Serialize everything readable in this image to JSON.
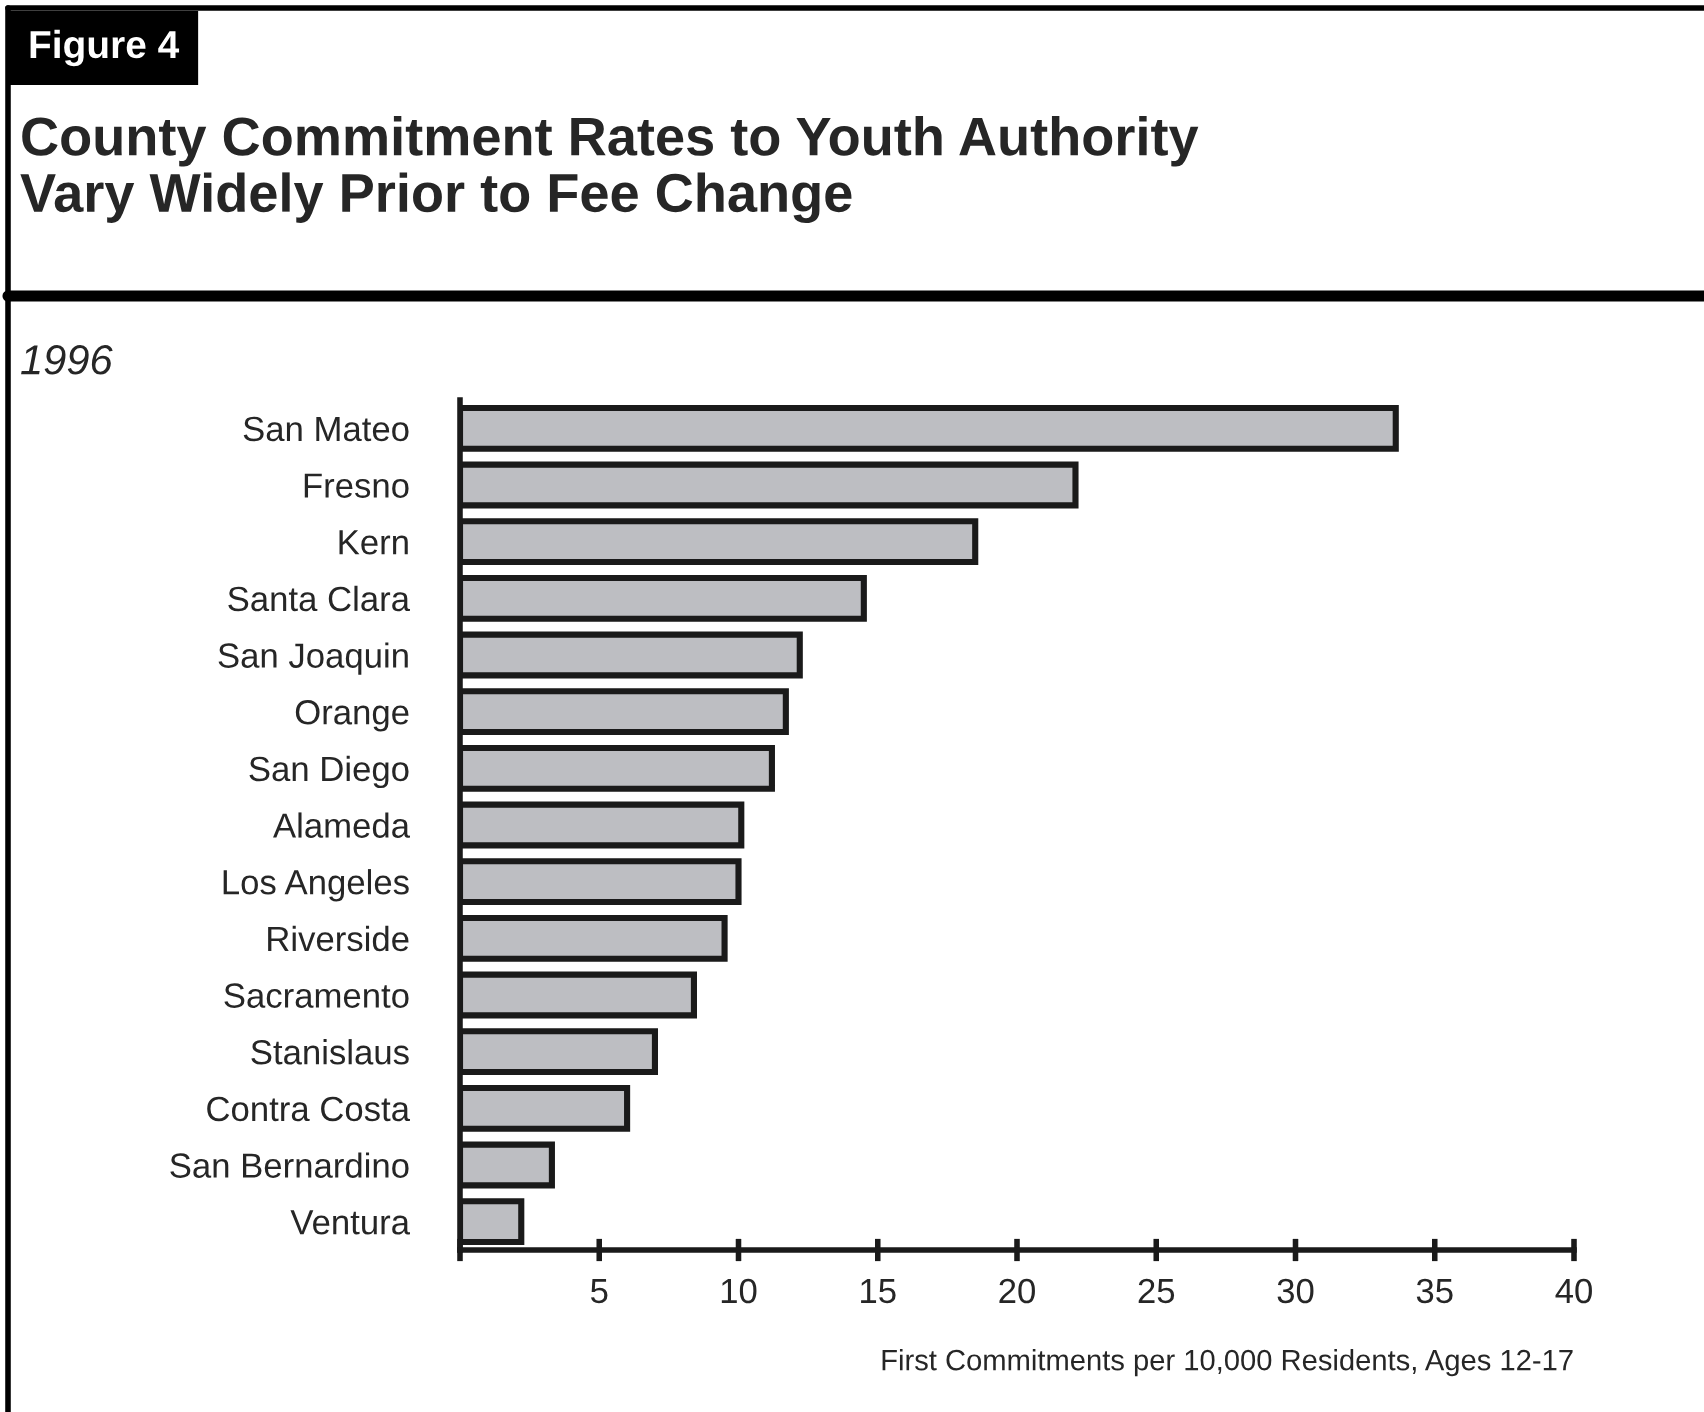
{
  "chart_data": {
    "type": "bar",
    "orientation": "horizontal",
    "title": "County Commitment Rates to Youth Authority\nVary Widely Prior to Fee Change",
    "subtitle": "1996",
    "xlabel": "First Commitments per 10,000 Residents, Ages 12-17",
    "annotations": [
      "Figure 4"
    ],
    "categories": [
      "San Mateo",
      "Fresno",
      "Kern",
      "Santa Clara",
      "San Joaquin",
      "Orange",
      "San Diego",
      "Alameda",
      "Los Angeles",
      "Riverside",
      "Sacramento",
      "Stanislaus",
      "Contra Costa",
      "San Bernardino",
      "Ventura"
    ],
    "values": [
      33.6,
      22.1,
      18.5,
      14.5,
      12.2,
      11.7,
      11.2,
      10.1,
      10.0,
      9.5,
      8.4,
      7.0,
      6.0,
      3.3,
      2.2
    ],
    "color": "#bdbec2",
    "xlim": [
      0,
      40
    ],
    "xticks": [
      {
        "value": 0,
        "label": null
      },
      5,
      10,
      15,
      20,
      25,
      30,
      35,
      40
    ],
    "grid": false,
    "legend": false
  }
}
